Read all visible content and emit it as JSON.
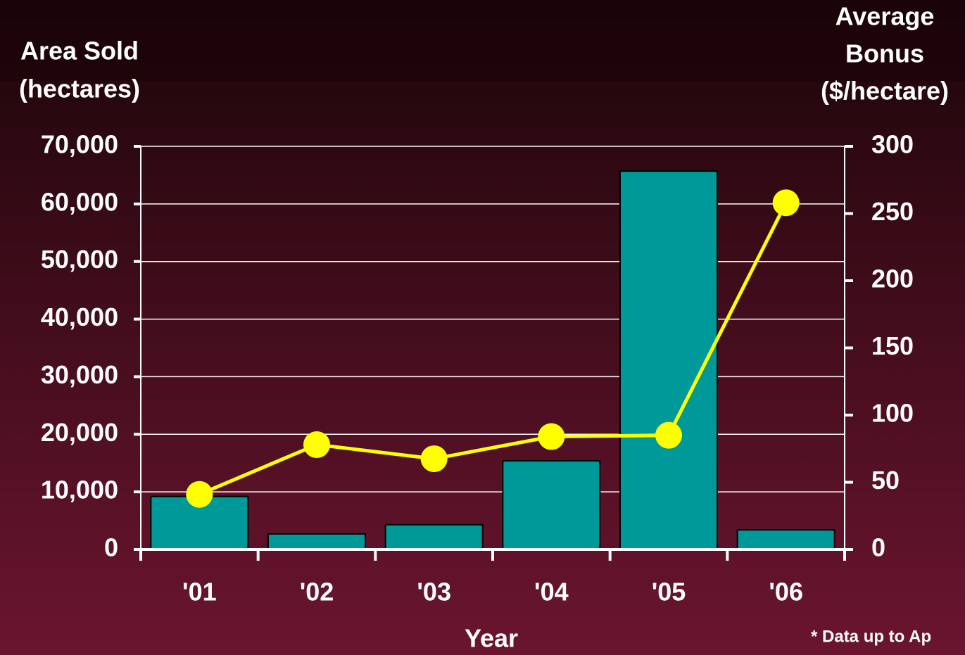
{
  "chart_data": {
    "type": "bar_line",
    "y_label": [
      "Area Sold",
      "(hectares)"
    ],
    "y2_label": [
      "Average",
      "Bonus",
      "($/hectare)"
    ],
    "x_label": "Year",
    "note": "* Data up to Ap",
    "categories": [
      "'01",
      "'02",
      "'03",
      "'04",
      "'05",
      "'06"
    ],
    "series": [
      {
        "name": "Area Sold",
        "type": "bar",
        "color": "#009999",
        "values": [
          9200,
          2700,
          4300,
          15400,
          65700,
          3400
        ]
      },
      {
        "name": "Average Bonus",
        "type": "line",
        "axis": "y2",
        "color": "#ffff00",
        "values": [
          41,
          78,
          67.5,
          84,
          85,
          258
        ]
      }
    ],
    "ylim": [
      0,
      70000
    ],
    "yticks": [
      0,
      {
        "value": 10000,
        "label": "10,000"
      },
      {
        "value": 20000,
        "label": "20,000"
      },
      {
        "value": 30000,
        "label": "30,000"
      },
      {
        "value": 40000,
        "label": "40,000"
      },
      {
        "value": 50000,
        "label": "50,000"
      },
      {
        "value": 60000,
        "label": "60,000"
      },
      {
        "value": 70000,
        "label": "70,000"
      }
    ],
    "y2lim": [
      0,
      300
    ],
    "y2ticks": [
      0,
      50,
      100,
      150,
      200,
      250,
      300
    ],
    "grid": true
  }
}
